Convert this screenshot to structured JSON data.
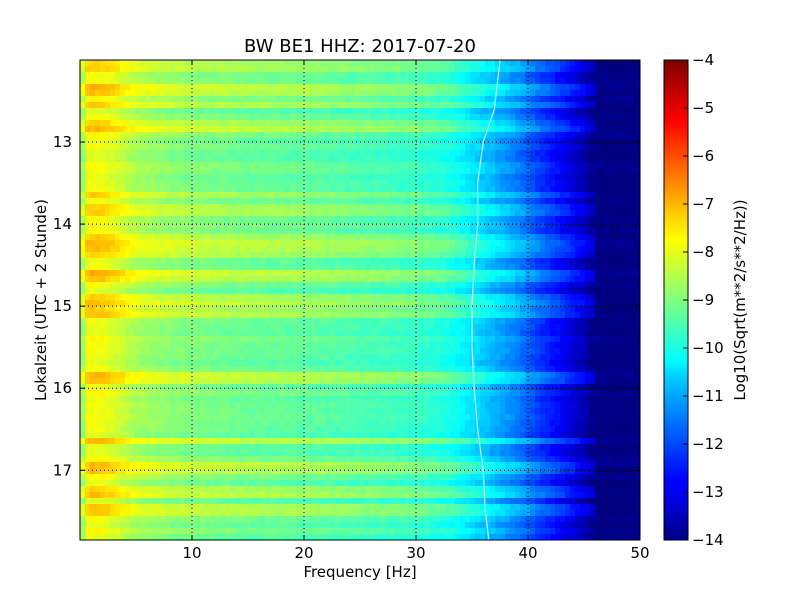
{
  "chart_data": {
    "type": "heatmap",
    "title": "BW BE1 HHZ: 2017-07-20",
    "xlabel": "Frequency [Hz]",
    "ylabel": "Lokalzeit (UTC + 2 Stunde)",
    "xlim": [
      0,
      50
    ],
    "ylim": [
      12.0,
      17.85
    ],
    "y_inverted": true,
    "x_ticks": [
      10,
      20,
      30,
      40,
      50
    ],
    "y_ticks": [
      13,
      14,
      15,
      16,
      17
    ],
    "grid": true,
    "colormap": "jet",
    "colorbar": {
      "label": "Log10(Sqrt(m**2/s**2/Hz))",
      "range": [
        -14,
        -4
      ],
      "ticks": [
        -14,
        -13,
        -12,
        -11,
        -10,
        -9,
        -8,
        -7,
        -6,
        -5,
        -4
      ]
    },
    "spectrum_profile": {
      "frequency_hz": [
        0,
        0.5,
        1,
        2,
        3,
        5,
        8,
        10,
        15,
        20,
        25,
        30,
        33,
        35,
        37,
        39,
        41,
        43,
        45,
        46,
        50
      ],
      "log10_amplitude": [
        -9.2,
        -8.0,
        -7.8,
        -7.9,
        -8.1,
        -8.6,
        -8.9,
        -9.0,
        -9.2,
        -9.3,
        -9.5,
        -9.7,
        -10.0,
        -10.5,
        -11.0,
        -11.5,
        -12.2,
        -12.8,
        -13.5,
        -14.0,
        -14.0
      ]
    },
    "line_feature": {
      "frequency_hz": [
        37.5,
        37.0,
        36.0,
        35.5,
        35.5,
        35.2,
        35.0,
        35.0,
        35.2,
        35.5,
        36.0,
        36.2,
        36.5
      ],
      "time_hours": [
        12.0,
        12.6,
        13.0,
        13.5,
        14.0,
        14.5,
        15.0,
        15.5,
        16.0,
        16.5,
        17.0,
        17.5,
        17.85
      ]
    },
    "high_noise_bands_hours": [
      12.1,
      12.35,
      12.55,
      12.8,
      13.65,
      13.8,
      14.2,
      14.35,
      14.65,
      14.9,
      15.1,
      15.85,
      16.65,
      17.0,
      17.25,
      17.5
    ]
  }
}
